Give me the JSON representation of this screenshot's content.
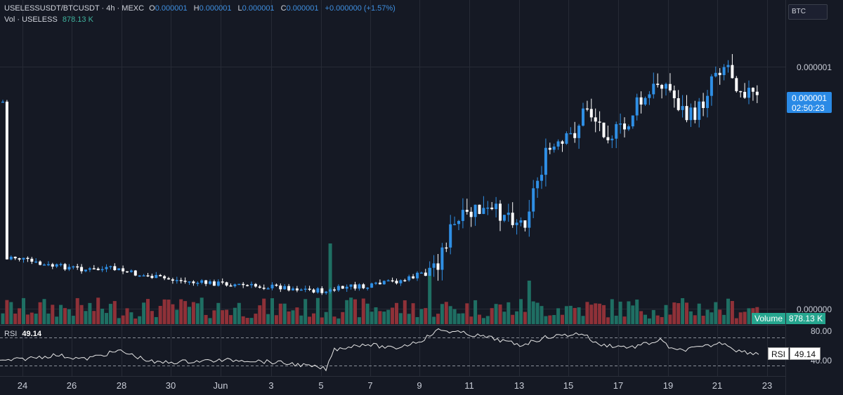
{
  "legend": {
    "symbol": "USELESSUSDT/BTCUSDT · 4h · MEXC",
    "open_label": "O",
    "open_value": "0.000001",
    "high_label": "H",
    "high_value": "0.000001",
    "low_label": "L",
    "low_value": "0.000001",
    "close_label": "C",
    "close_value": "0.000001",
    "change": "+0.000000 (+1.57%)",
    "vol_label": "Vol · USELESS",
    "vol_value": "878.13 K"
  },
  "price_axis": {
    "currency": "BTC",
    "tick_top": "0.000001",
    "tick_bottom": "0.000000",
    "last_price": "0.000001",
    "countdown": "02:50:23"
  },
  "volume_tag": {
    "label": "Volume",
    "value": "878.13 K"
  },
  "rsi": {
    "label": "RSI",
    "value": "49.14",
    "upper_tick": "80.00",
    "lower_tick": "40.00"
  },
  "time_axis": [
    "24",
    "26",
    "28",
    "30",
    "Jun",
    "3",
    "5",
    "7",
    "9",
    "11",
    "13",
    "15",
    "17",
    "19",
    "21",
    "23"
  ],
  "colors": {
    "up": "#2f8fe5",
    "down": "#ffffff",
    "vol_up": "#1f6f63",
    "vol_down": "#8f3138",
    "background": "#151924"
  }
}
